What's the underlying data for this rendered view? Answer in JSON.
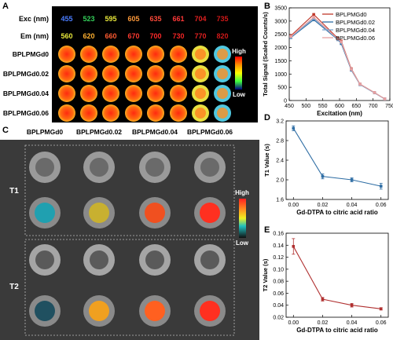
{
  "panel_labels": {
    "a": "A",
    "b": "B",
    "c": "C",
    "d": "D",
    "e": "E"
  },
  "panel_a": {
    "exc_label": "Exc (nm)",
    "em_label": "Em (nm)",
    "exc": [
      "455",
      "523",
      "595",
      "605",
      "635",
      "661",
      "704",
      "735"
    ],
    "em": [
      "560",
      "620",
      "660",
      "670",
      "700",
      "730",
      "770",
      "820"
    ],
    "exc_colors": [
      "#4a7dff",
      "#34d05a",
      "#e8e83a",
      "#ff9a3a",
      "#ff4a3a",
      "#ff3838",
      "#e02020",
      "#d01818"
    ],
    "em_colors": [
      "#e8e83a",
      "#ffb030",
      "#ff5a30",
      "#ff3a30",
      "#ff2a2a",
      "#f02424",
      "#e02020",
      "#d01818"
    ],
    "rows": [
      "BPLPMGd0",
      "BPLPMGd0.02",
      "BPLPMGd0.04",
      "BPLPMGd0.06"
    ],
    "scale_high": "High",
    "scale_low": "Low"
  },
  "panel_c": {
    "columns": [
      "BPLPMGd0",
      "BPLPMGd0.02",
      "BPLPMGd0.04",
      "BPLPMGd0.06"
    ],
    "t1_label": "T1",
    "t2_label": "T2",
    "scale_high": "High",
    "scale_low": "Low"
  },
  "chart_data": [
    {
      "id": "B",
      "type": "line",
      "xlabel": "Excitation (nm)",
      "ylabel": "Total Signal (Scaled Counts/s)",
      "xlim": [
        450,
        750
      ],
      "ylim": [
        0,
        3500
      ],
      "xticks": [
        450,
        500,
        550,
        600,
        650,
        700,
        750
      ],
      "yticks": [
        0,
        500,
        1000,
        1500,
        2000,
        2500,
        3000,
        3500
      ],
      "x": [
        455,
        523,
        595,
        605,
        635,
        661,
        704,
        735
      ],
      "legend_position": "top-right",
      "series": [
        {
          "name": "BPLPMGd0",
          "color": "#c0392b",
          "values": [
            2450,
            3250,
            2350,
            2250,
            1200,
            620,
            300,
            60
          ]
        },
        {
          "name": "BPLPMGd0.02",
          "color": "#2e6da4",
          "values": [
            2380,
            3050,
            2300,
            2150,
            1150,
            600,
            290,
            55
          ]
        },
        {
          "name": "BPLPMGd0.04",
          "color": "#7fa7d0",
          "values": [
            2400,
            3100,
            2320,
            2200,
            1170,
            610,
            295,
            58
          ]
        },
        {
          "name": "BPLPMGd0.06",
          "color": "#e8a0a0",
          "values": [
            2420,
            3150,
            2330,
            2220,
            1180,
            615,
            298,
            60
          ]
        }
      ]
    },
    {
      "id": "D",
      "type": "line",
      "xlabel": "Gd-DTPA to citric acid ratio",
      "ylabel": "T1 Value (s)",
      "xlim": [
        -0.005,
        0.065
      ],
      "ylim": [
        1.6,
        3.2
      ],
      "xticks": [
        "0.00",
        "0.02",
        "0.04",
        "0.06"
      ],
      "yticks": [
        "1.6",
        "2.0",
        "2.4",
        "2.8",
        "3.2"
      ],
      "x": [
        0.0,
        0.02,
        0.04,
        0.06
      ],
      "series": [
        {
          "color": "#2e6da4",
          "values": [
            3.05,
            2.07,
            2.0,
            1.87
          ],
          "errors": [
            0.05,
            0.05,
            0.04,
            0.06
          ]
        }
      ]
    },
    {
      "id": "E",
      "type": "line",
      "xlabel": "Gd-DTPA to citric acid ratio",
      "ylabel": "T2 Value (s)",
      "xlim": [
        -0.005,
        0.065
      ],
      "ylim": [
        0.02,
        0.16
      ],
      "xticks": [
        "0.00",
        "0.02",
        "0.04",
        "0.06"
      ],
      "yticks": [
        "0.02",
        "0.04",
        "0.06",
        "0.08",
        "0.10",
        "0.12",
        "0.14",
        "0.16"
      ],
      "x": [
        0.0,
        0.02,
        0.04,
        0.06
      ],
      "series": [
        {
          "color": "#b03030",
          "values": [
            0.138,
            0.05,
            0.04,
            0.034
          ],
          "errors": [
            0.013,
            0.003,
            0.003,
            0.002
          ]
        }
      ]
    }
  ]
}
